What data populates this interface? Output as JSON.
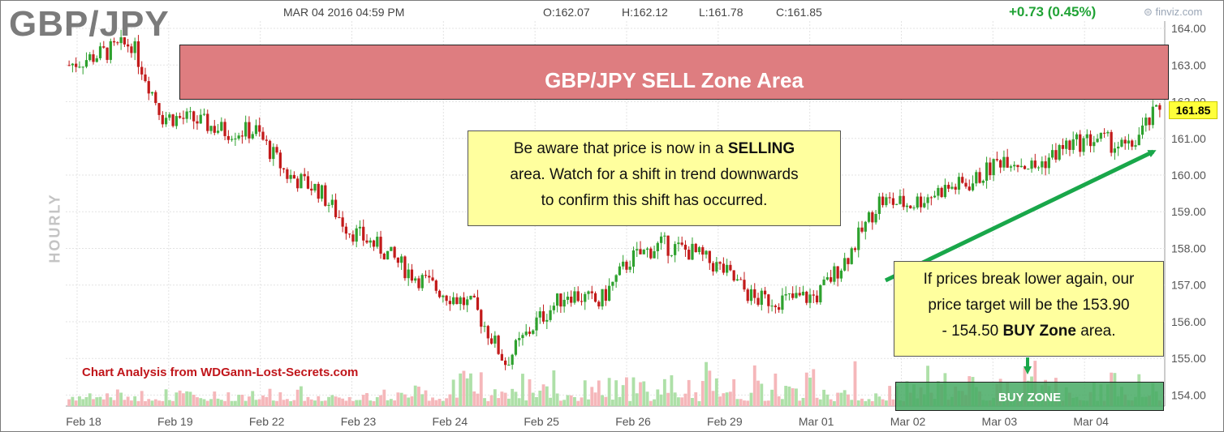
{
  "header": {
    "symbol": "GBP/JPY",
    "datetime": "MAR 04 2016 04:59 PM",
    "open": "O:162.07",
    "high": "H:162.12",
    "low": "L:161.78",
    "close": "C:161.85",
    "change": "+0.73 (0.45%)",
    "source": "finviz.com",
    "interval": "HOURLY",
    "last_price": "161.85"
  },
  "annotations": {
    "sell_zone": "GBP/JPY SELL Zone Area",
    "sell_note_lines": [
      "Be aware that price is now in a ",
      "SELLING",
      "area. Watch for a shift in trend downwards",
      "to confirm this shift has occurred."
    ],
    "buy_note_lines": [
      "If prices break lower again, our",
      "price target will be the 153.90",
      "- 154.50 ",
      "BUY Zone",
      " area."
    ],
    "buy_zone": "BUY ZONE",
    "credit": "Chart Analysis from WDGann-Lost-Secrets.com"
  },
  "colors": {
    "up": "#2ea12e",
    "down": "#c21a1a",
    "volume_up": "#aee0a8",
    "volume_down": "#f5b7ba",
    "sell_zone": "#de7d80",
    "buy_zone": "#46aa64",
    "note_bg": "#ffff9e",
    "arrow": "#19a74a"
  },
  "chart_data": {
    "type": "line",
    "title": "GBP/JPY",
    "interval": "HOURLY",
    "y_axis_side": "right",
    "ylim": [
      153.7,
      164.2
    ],
    "y_ticks": [
      "154.00",
      "155.00",
      "156.00",
      "157.00",
      "158.00",
      "159.00",
      "160.00",
      "161.00",
      "162.00",
      "163.00",
      "164.00"
    ],
    "x_ticks": [
      "Feb 18",
      "Feb 19",
      "Feb 22",
      "Feb 23",
      "Feb 24",
      "Feb 25",
      "Feb 26",
      "Feb 29",
      "Mar 01",
      "Mar 02",
      "Mar 03",
      "Mar 04"
    ],
    "series": [
      {
        "name": "Close",
        "x": [
          "Feb 18",
          "Feb 18",
          "Feb 18",
          "Feb 19",
          "Feb 19",
          "Feb 19",
          "Feb 22",
          "Feb 22",
          "Feb 22",
          "Feb 23",
          "Feb 23",
          "Feb 23",
          "Feb 24",
          "Feb 24",
          "Feb 24",
          "Feb 25",
          "Feb 25",
          "Feb 25",
          "Feb 26",
          "Feb 26",
          "Feb 26",
          "Feb 29",
          "Feb 29",
          "Feb 29",
          "Mar 01",
          "Mar 01",
          "Mar 01",
          "Mar 02",
          "Mar 02",
          "Mar 02",
          "Mar 03",
          "Mar 03",
          "Mar 03",
          "Mar 04",
          "Mar 04",
          "Mar 04"
        ],
        "values": [
          163.0,
          163.3,
          163.6,
          161.6,
          161.5,
          161.2,
          161.2,
          160.0,
          159.6,
          158.5,
          158.0,
          157.3,
          156.8,
          156.4,
          154.9,
          156.0,
          156.8,
          156.5,
          157.7,
          158.1,
          157.9,
          157.4,
          156.6,
          156.6,
          156.7,
          157.8,
          159.3,
          159.2,
          159.6,
          159.8,
          160.5,
          160.2,
          160.8,
          161.0,
          160.7,
          161.85
        ]
      }
    ],
    "sell_zone": [
      162.0,
      163.4
    ],
    "buy_zone": [
      153.9,
      154.5
    ]
  }
}
